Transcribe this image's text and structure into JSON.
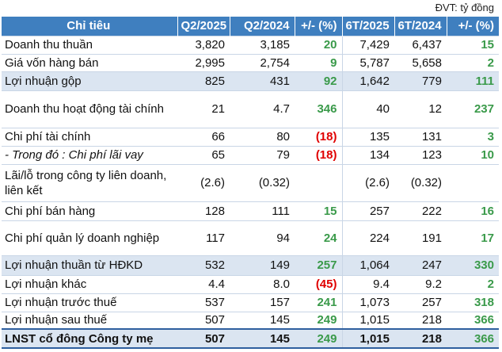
{
  "unit": "ĐVT: tỷ đồng",
  "headers": [
    "Chỉ tiêu",
    "Q2/2025",
    "Q2/2024",
    "+/- (%)",
    "6T/2025",
    "6T/2024",
    "+/- (%)"
  ],
  "rows": [
    {
      "label": "Doanh thu thuần",
      "q2_2025": "3,820",
      "q2_2024": "3,185",
      "chg_q": "20",
      "h1_2025": "7,429",
      "h1_2024": "6,437",
      "chg_h": "15"
    },
    {
      "label": "Giá vốn hàng bán",
      "q2_2025": "2,995",
      "q2_2024": "2,754",
      "chg_q": "9",
      "h1_2025": "5,787",
      "h1_2024": "5,658",
      "chg_h": "2"
    },
    {
      "label": "Lợi nhuận gộp",
      "q2_2025": "825",
      "q2_2024": "431",
      "chg_q": "92",
      "h1_2025": "1,642",
      "h1_2024": "779",
      "chg_h": "111"
    },
    {
      "label": "Doanh thu hoạt động tài chính",
      "q2_2025": "21",
      "q2_2024": "4.7",
      "chg_q": "346",
      "h1_2025": "40",
      "h1_2024": "12",
      "chg_h": "237"
    },
    {
      "label": "Chi phí tài chính",
      "q2_2025": "66",
      "q2_2024": "80",
      "chg_q": "(18)",
      "h1_2025": "135",
      "h1_2024": "131",
      "chg_h": "3"
    },
    {
      "label": "- Trong đó : Chi phí lãi vay",
      "q2_2025": "65",
      "q2_2024": "79",
      "chg_q": "(18)",
      "h1_2025": "134",
      "h1_2024": "123",
      "chg_h": "10"
    },
    {
      "label": "Lãi/lỗ trong công ty liên doanh, liên kết",
      "q2_2025": "(2.6)",
      "q2_2024": "(0.32)",
      "chg_q": "",
      "h1_2025": "(2.6)",
      "h1_2024": "(0.32)",
      "chg_h": ""
    },
    {
      "label": "Chi phí bán hàng",
      "q2_2025": "128",
      "q2_2024": "111",
      "chg_q": "15",
      "h1_2025": "257",
      "h1_2024": "222",
      "chg_h": "16"
    },
    {
      "label": "Chi phí quản lý doanh nghiệp",
      "q2_2025": "117",
      "q2_2024": "94",
      "chg_q": "24",
      "h1_2025": "224",
      "h1_2024": "191",
      "chg_h": "17"
    },
    {
      "label": "Lợi nhuận thuần từ HĐKD",
      "q2_2025": "532",
      "q2_2024": "149",
      "chg_q": "257",
      "h1_2025": "1,064",
      "h1_2024": "247",
      "chg_h": "330"
    },
    {
      "label": "Lợi nhuận khác",
      "q2_2025": "4.4",
      "q2_2024": "8.0",
      "chg_q": "(45)",
      "h1_2025": "9.4",
      "h1_2024": "9.2",
      "chg_h": "2"
    },
    {
      "label": "Lợi nhuận trước thuế",
      "q2_2025": "537",
      "q2_2024": "157",
      "chg_q": "241",
      "h1_2025": "1,073",
      "h1_2024": "257",
      "chg_h": "318"
    },
    {
      "label": "Lợi nhuận sau thuế",
      "q2_2025": "507",
      "q2_2024": "145",
      "chg_q": "249",
      "h1_2025": "1,015",
      "h1_2024": "218",
      "chg_h": "366"
    },
    {
      "label": "LNST cổ đông Công ty mẹ",
      "q2_2025": "507",
      "q2_2024": "145",
      "chg_q": "249",
      "h1_2025": "1,015",
      "h1_2024": "218",
      "chg_h": "366"
    }
  ],
  "colors": {
    "header_bg": "#3f7fbf",
    "highlight_bg": "#dbe5f1",
    "positive": "#3a9a4a",
    "negative": "#e00000"
  }
}
